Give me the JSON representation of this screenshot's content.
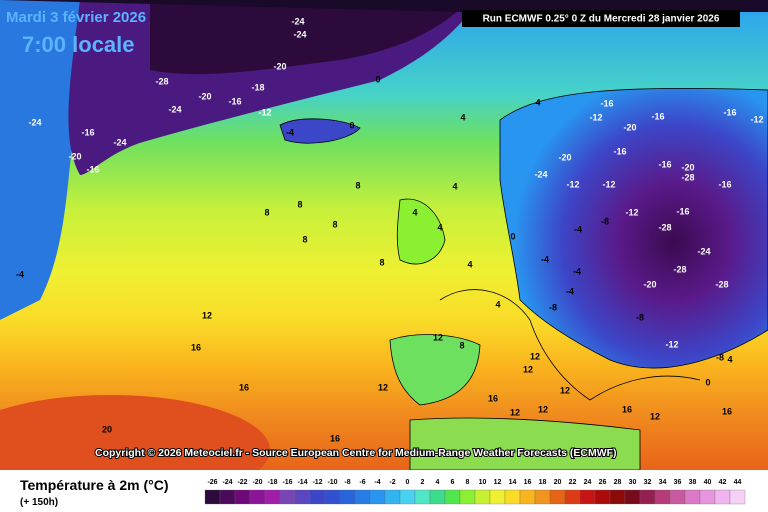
{
  "header": {
    "date": "Mardi 3 février 2026",
    "time": "7:00 locale",
    "run": "Run ECMWF 0.25° 0 Z du Mercredi 28 janvier 2026"
  },
  "copyright": "Copyright © 2026 Meteociel.fr - Source European Centre for Medium-Range Weather Forecasts (ECMWF)",
  "legend": {
    "title": "Température à 2m (°C)",
    "subtitle": "(+ 150h)",
    "values": [
      -26,
      -24,
      -22,
      -20,
      -18,
      -16,
      -14,
      -12,
      -10,
      -8,
      -6,
      -4,
      -2,
      0,
      2,
      4,
      6,
      8,
      10,
      12,
      14,
      16,
      18,
      20,
      22,
      24,
      26,
      28,
      30,
      32,
      34,
      36,
      38,
      40,
      42,
      44
    ],
    "colors": [
      "#2d0a3c",
      "#4b0a5a",
      "#6e0a78",
      "#8c1496",
      "#a01eaa",
      "#7846b4",
      "#5a46c0",
      "#3c46c8",
      "#3250d2",
      "#2864dc",
      "#287ce6",
      "#2896f0",
      "#32b4f0",
      "#46d2f0",
      "#50e6c8",
      "#3cdc8c",
      "#50e650",
      "#8cf032",
      "#c8f032",
      "#f0f032",
      "#fadc28",
      "#fab41e",
      "#f0961e",
      "#e66414",
      "#dc3c14",
      "#c81414",
      "#aa0a0a",
      "#8c0a0a",
      "#780a1e",
      "#961e50",
      "#b43c78",
      "#c85aa0",
      "#dc78c8",
      "#e696dc",
      "#f0b4f0",
      "#f5d2f5"
    ]
  },
  "contour_labels": [
    -28,
    -24,
    -24,
    -20,
    -16,
    -18,
    -20,
    -24,
    -24,
    -24,
    -16,
    -20,
    -16,
    -12,
    0,
    -4,
    0,
    4,
    4,
    -16,
    -12,
    -20,
    -16,
    -16,
    -12,
    -20,
    -24,
    -12,
    -16,
    -16,
    -20,
    -28,
    -16,
    -28,
    -24,
    -28,
    -28,
    -20,
    -12,
    -12,
    -16,
    -8,
    -4,
    -4,
    -4,
    -8,
    -4,
    -8,
    -12,
    -8,
    4,
    8,
    8,
    8,
    8,
    8,
    8,
    4,
    4,
    4,
    0,
    4,
    12,
    16,
    16,
    20,
    12,
    12,
    8,
    12,
    12,
    12,
    16,
    12,
    12,
    16,
    12,
    16,
    16,
    -4,
    0,
    4
  ]
}
